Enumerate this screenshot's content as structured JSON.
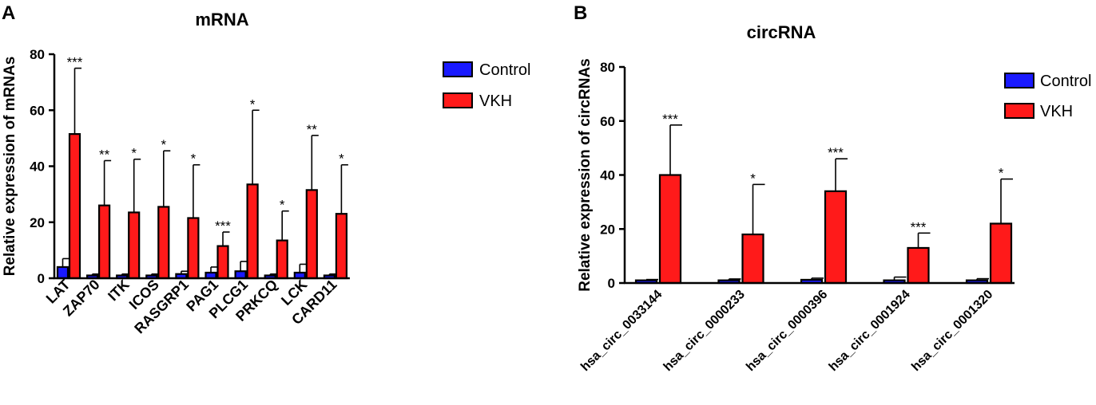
{
  "chart_data": [
    {
      "type": "bar",
      "panel": "A",
      "title": "mRNA",
      "xlabel": "",
      "ylabel": "Relative expression of mRNAs",
      "ylim": [
        0,
        80
      ],
      "yticks": [
        0,
        20,
        40,
        60,
        80
      ],
      "legend": "top-right",
      "categories": [
        "LAT",
        "ZAP70",
        "ITK",
        "ICOS",
        "RASGRP1",
        "PAG1",
        "PLCG1",
        "PRKCQ",
        "LCK",
        "CARD11"
      ],
      "series": [
        {
          "name": "Control",
          "color": "#1a1aff",
          "values": [
            4,
            1,
            1,
            1,
            1.5,
            2,
            2.5,
            1,
            2,
            1
          ],
          "errors": [
            3,
            0.5,
            0.5,
            0.5,
            1,
            2,
            3.5,
            0.5,
            3,
            0.5
          ]
        },
        {
          "name": "VKH",
          "color": "#ff1a1a",
          "values": [
            51.5,
            26,
            23.5,
            25.5,
            21.5,
            11.5,
            33.5,
            13.5,
            31.5,
            23
          ],
          "errors": [
            23.5,
            16,
            19,
            20,
            19,
            5,
            26.5,
            10.5,
            19.5,
            17.5
          ]
        }
      ],
      "significance": [
        "***",
        "**",
        "*",
        "*",
        "*",
        "***",
        "*",
        "*",
        "**",
        "*"
      ]
    },
    {
      "type": "bar",
      "panel": "B",
      "title": "circRNA",
      "xlabel": "",
      "ylabel": "Relative expression of circRNAs",
      "ylim": [
        0,
        80
      ],
      "yticks": [
        0,
        20,
        40,
        60,
        80
      ],
      "legend": "top-right",
      "categories": [
        "hsa_circ_0033144",
        "hsa_circ_0000233",
        "hsa_circ_0000396",
        "hsa_circ_0001924",
        "hsa_circ_0001320"
      ],
      "series": [
        {
          "name": "Control",
          "color": "#1a1aff",
          "values": [
            1,
            1,
            1.2,
            1,
            1
          ],
          "errors": [
            0.3,
            0.5,
            0.6,
            1.2,
            0.6
          ]
        },
        {
          "name": "VKH",
          "color": "#ff1a1a",
          "values": [
            40,
            18,
            34,
            13,
            22
          ],
          "errors": [
            18.5,
            18.5,
            12,
            5.5,
            16.5
          ]
        }
      ],
      "significance": [
        "***",
        "*",
        "***",
        "***",
        "*"
      ]
    }
  ]
}
